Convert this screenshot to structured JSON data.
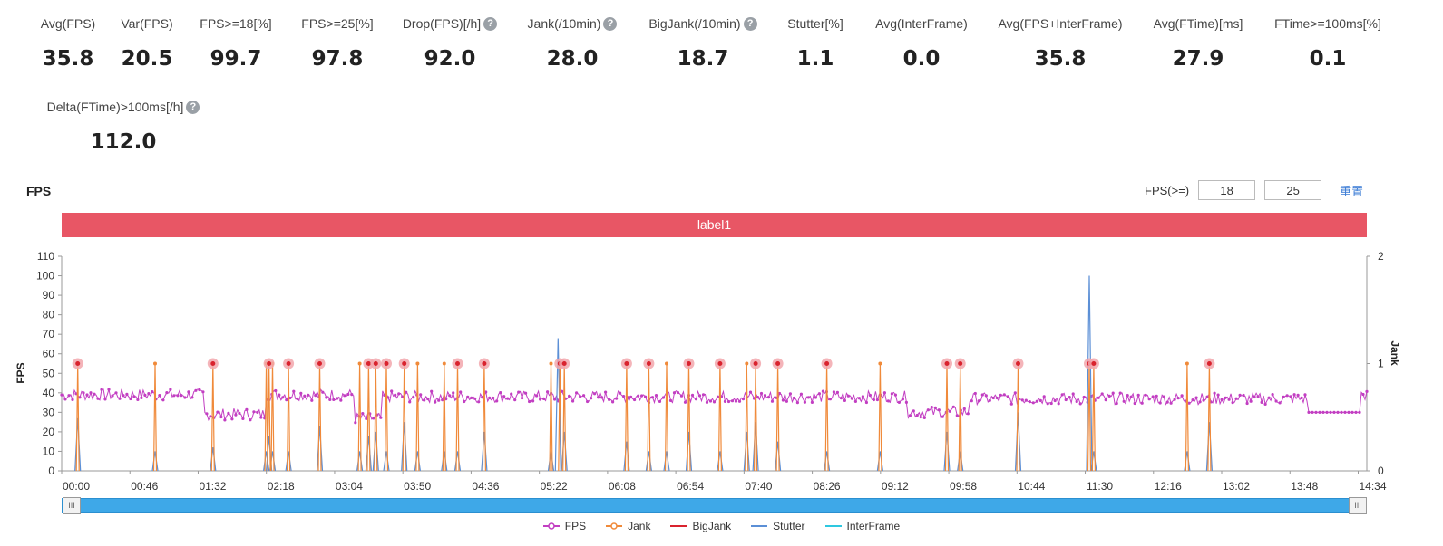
{
  "metrics": [
    {
      "label": "Avg(FPS)",
      "value": "35.8",
      "help": false
    },
    {
      "label": "Var(FPS)",
      "value": "20.5",
      "help": false
    },
    {
      "label": "FPS>=18[%]",
      "value": "99.7",
      "help": false
    },
    {
      "label": "FPS>=25[%]",
      "value": "97.8",
      "help": false
    },
    {
      "label": "Drop(FPS)[/h]",
      "value": "92.0",
      "help": true
    },
    {
      "label": "Jank(/10min)",
      "value": "28.0",
      "help": true
    },
    {
      "label": "BigJank(/10min)",
      "value": "18.7",
      "help": true
    },
    {
      "label": "Stutter[%]",
      "value": "1.1",
      "help": false
    },
    {
      "label": "Avg(InterFrame)",
      "value": "0.0",
      "help": false
    },
    {
      "label": "Avg(FPS+InterFrame)",
      "value": "35.8",
      "help": false
    },
    {
      "label": "Avg(FTime)[ms]",
      "value": "27.9",
      "help": false
    },
    {
      "label": "FTime>=100ms[%]",
      "value": "0.1",
      "help": false
    },
    {
      "label": "Delta(FTime)>100ms[/h]",
      "value": "112.0",
      "help": true
    }
  ],
  "help_glyph": "?",
  "chart_title": "FPS",
  "threshold": {
    "label": "FPS(>=)",
    "low": "18",
    "high": "25",
    "reset": "重置"
  },
  "label_bar": "label1",
  "slider": {
    "handle_left": "III",
    "handle_right": "III"
  },
  "colors": {
    "fps": "#c23ec2",
    "jank": "#f08a3a",
    "bigjank": "#d9232e",
    "stutter": "#5b8fd6",
    "interframe": "#2ec8e0",
    "label_bar": "#e85665"
  },
  "chart_data": {
    "type": "line",
    "title": "FPS",
    "ylabel": "FPS",
    "y2label": "Jank",
    "ylim": [
      0,
      110
    ],
    "y2lim": [
      0,
      2
    ],
    "yticks": [
      0,
      10,
      20,
      30,
      40,
      50,
      60,
      70,
      80,
      90,
      100,
      110
    ],
    "y2ticks": [
      0,
      1,
      2
    ],
    "xlim": [
      0,
      14.67
    ],
    "xticks": [
      "00:00",
      "00:46",
      "01:32",
      "02:18",
      "03:04",
      "03:50",
      "04:36",
      "05:22",
      "06:08",
      "06:54",
      "07:40",
      "08:26",
      "09:12",
      "09:58",
      "10:44",
      "11:30",
      "12:16",
      "13:02",
      "13:48",
      "14:34"
    ],
    "legend": [
      "FPS",
      "Jank",
      "BigJank",
      "Stutter",
      "InterFrame"
    ],
    "fps_segments": [
      {
        "from": 0.0,
        "to": 1.6,
        "level": 39
      },
      {
        "from": 1.6,
        "to": 2.3,
        "level": 29
      },
      {
        "from": 2.3,
        "to": 3.3,
        "level": 39
      },
      {
        "from": 3.3,
        "to": 3.6,
        "level": 27
      },
      {
        "from": 3.6,
        "to": 9.5,
        "level": 38
      },
      {
        "from": 9.5,
        "to": 10.2,
        "level": 30
      },
      {
        "from": 10.2,
        "to": 14.0,
        "level": 37
      },
      {
        "from": 14.0,
        "to": 14.6,
        "level": 30
      },
      {
        "from": 14.6,
        "to": 14.67,
        "level": 39
      }
    ],
    "jank_x": [
      0.18,
      1.05,
      1.7,
      2.3,
      2.33,
      2.37,
      2.55,
      2.9,
      3.35,
      3.45,
      3.53,
      3.65,
      3.85,
      4.0,
      4.3,
      4.45,
      4.75,
      5.5,
      5.6,
      5.65,
      6.35,
      6.6,
      6.8,
      7.05,
      7.4,
      7.7,
      7.8,
      8.05,
      8.6,
      9.2,
      9.95,
      10.1,
      10.75,
      11.55,
      11.6,
      12.65,
      12.9
    ],
    "stutter_x": [
      0.18,
      1.05,
      1.7,
      2.3,
      2.33,
      2.37,
      2.55,
      2.9,
      3.35,
      3.45,
      3.53,
      3.65,
      3.85,
      4.0,
      4.3,
      4.45,
      4.75,
      5.5,
      5.58,
      5.65,
      6.35,
      6.6,
      6.8,
      7.05,
      7.4,
      7.7,
      7.8,
      8.05,
      8.6,
      9.2,
      9.95,
      10.1,
      10.75,
      11.55,
      11.6,
      12.65,
      12.9
    ],
    "stutter_values": [
      27,
      10,
      12,
      10,
      18,
      10,
      10,
      23,
      10,
      18,
      20,
      10,
      25,
      10,
      10,
      10,
      20,
      10,
      68,
      20,
      15,
      10,
      10,
      20,
      10,
      20,
      25,
      15,
      10,
      10,
      20,
      10,
      30,
      100,
      10,
      10,
      25
    ],
    "bigjank_x": [
      0.18,
      1.7,
      2.33,
      2.55,
      2.9,
      3.45,
      3.53,
      3.65,
      3.85,
      4.45,
      4.75,
      5.6,
      5.65,
      6.35,
      6.6,
      7.05,
      7.4,
      7.8,
      8.05,
      8.6,
      9.95,
      10.1,
      10.75,
      11.55,
      11.6,
      12.9
    ]
  }
}
